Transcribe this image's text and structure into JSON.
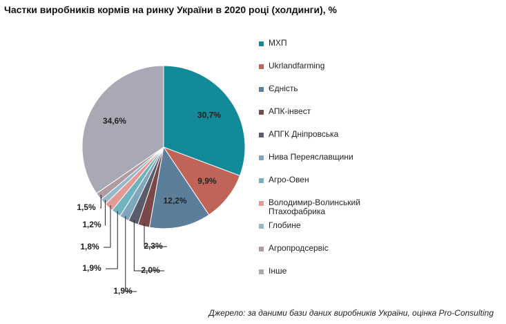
{
  "chart_data": {
    "type": "pie",
    "title": "Частки виробників кормів на ринку України в 2020 році (холдинги), %",
    "source": "Джерело: за даними бази даних виробників України, оцінка Pro-Consulting",
    "categories": [
      "МХП",
      "Ukrlandfarming",
      "Єдність",
      "АПК-інвест",
      "АПГК Дніпровська",
      "Нива Переяславщини",
      "Агро-Овен",
      "Володимир-Волинський Птахофабрика",
      "Глобине",
      "Агропродсервіс",
      "Інше"
    ],
    "values": [
      30.7,
      9.9,
      12.2,
      2.3,
      2.0,
      1.9,
      1.9,
      1.8,
      1.2,
      1.5,
      34.6
    ],
    "value_labels": [
      "30,7%",
      "9,9%",
      "12,2%",
      "2,3%",
      "2,0%",
      "1,9%",
      "1,9%",
      "1,8%",
      "1,2%",
      "1,5%",
      "34,6%"
    ],
    "colors": [
      "#138a98",
      "#c0645a",
      "#5b7e9b",
      "#7a4848",
      "#5b5b6e",
      "#7fa6bd",
      "#6fb3be",
      "#e39a95",
      "#93b8c9",
      "#b09ba3",
      "#a9a9b6"
    ],
    "legend": "right"
  }
}
